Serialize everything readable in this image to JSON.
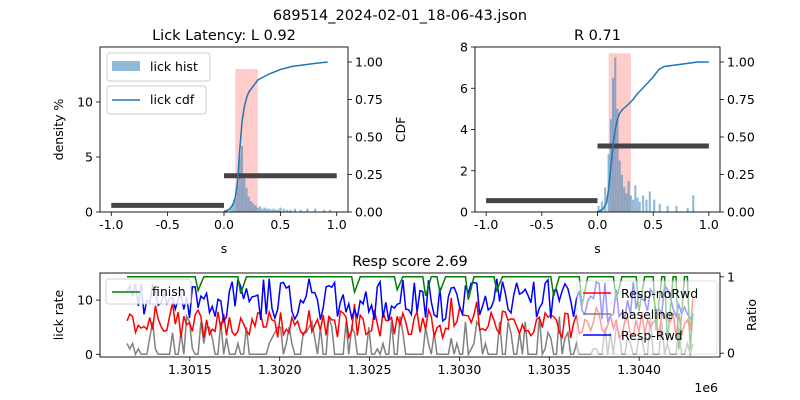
{
  "suptitle": "689514_2024-02-01_18-06-43.json",
  "chart_data": [
    {
      "type": "bar",
      "title": "Lick Latency: L 0.92",
      "xlabel": "s",
      "ylabel": "density %",
      "y2label": "CDF",
      "xlim": [
        -1.1,
        1.1
      ],
      "ylim": [
        0,
        15
      ],
      "y2lim": [
        0,
        1.1
      ],
      "xticks": [
        "-1.0",
        "-0.5",
        "0.0",
        "0.5",
        "1.0"
      ],
      "xtick_values": [
        -1.0,
        -0.5,
        0.0,
        0.5,
        1.0
      ],
      "yticks": [
        "0",
        "5",
        "10"
      ],
      "ytick_values": [
        0,
        5,
        10
      ],
      "y2ticks": [
        "0.00",
        "0.25",
        "0.50",
        "0.75",
        "1.00"
      ],
      "y2tick_values": [
        0,
        0.25,
        0.5,
        0.75,
        1.0
      ],
      "legend": [
        "lick hist",
        "lick cdf"
      ],
      "legend_position": "upper-left",
      "window": [
        0.1,
        0.3
      ],
      "window_height": 13,
      "baseline_bar": {
        "x": [
          -1.0,
          0.0
        ],
        "y": 0.6
      },
      "response_bar": {
        "x": [
          0.0,
          1.0
        ],
        "y": 3.3
      },
      "hist": {
        "x": [
          0.0,
          0.02,
          0.05,
          0.07,
          0.09,
          0.11,
          0.13,
          0.15,
          0.17,
          0.19,
          0.21,
          0.23,
          0.25,
          0.27,
          0.29,
          0.31,
          0.33,
          0.35,
          0.37,
          0.39,
          0.41,
          0.43,
          0.45,
          0.47,
          0.49,
          0.52,
          0.55,
          0.58,
          0.62,
          0.67,
          0.73,
          0.8,
          0.88,
          0.93
        ],
        "values": [
          0.2,
          0.2,
          0.4,
          0.8,
          1.2,
          2.5,
          5.2,
          6.0,
          3.5,
          2.2,
          1.4,
          1.0,
          0.8,
          0.6,
          0.4,
          0.5,
          0.3,
          0.4,
          0.3,
          0.3,
          0.2,
          0.3,
          0.2,
          0.2,
          0.4,
          0.3,
          0.2,
          0.2,
          0.3,
          0.2,
          0.3,
          0.3,
          0.2,
          0.2
        ]
      },
      "cdf": {
        "x": [
          0.0,
          0.05,
          0.08,
          0.1,
          0.12,
          0.14,
          0.16,
          0.18,
          0.2,
          0.22,
          0.26,
          0.3,
          0.35,
          0.4,
          0.5,
          0.6,
          0.7,
          0.8,
          0.92
        ],
        "values": [
          0.0,
          0.02,
          0.05,
          0.1,
          0.2,
          0.42,
          0.6,
          0.7,
          0.76,
          0.8,
          0.84,
          0.88,
          0.9,
          0.92,
          0.95,
          0.97,
          0.98,
          0.99,
          1.0
        ]
      }
    },
    {
      "type": "bar",
      "title": "R 0.71",
      "xlabel": "s",
      "ylabel": "",
      "y2label": "",
      "xlim": [
        -1.1,
        1.1
      ],
      "ylim": [
        0,
        8
      ],
      "y2lim": [
        0,
        1.1
      ],
      "xticks": [
        "-1.0",
        "-0.5",
        "0.0",
        "0.5",
        "1.0"
      ],
      "xtick_values": [
        -1.0,
        -0.5,
        0.0,
        0.5,
        1.0
      ],
      "yticks": [
        "0",
        "2",
        "4",
        "6",
        "8"
      ],
      "ytick_values": [
        0,
        2,
        4,
        6,
        8
      ],
      "y2ticks": [
        "0.00",
        "0.25",
        "0.50",
        "0.75",
        "1.00"
      ],
      "y2tick_values": [
        0,
        0.25,
        0.5,
        0.75,
        1.0
      ],
      "window": [
        0.1,
        0.3
      ],
      "window_height": 7.7,
      "baseline_bar": {
        "x": [
          -1.0,
          0.0
        ],
        "y": 0.55
      },
      "response_bar": {
        "x": [
          0.0,
          1.0
        ],
        "y": 3.2
      },
      "hist": {
        "x": [
          0.0,
          0.03,
          0.06,
          0.09,
          0.11,
          0.13,
          0.15,
          0.17,
          0.19,
          0.21,
          0.23,
          0.25,
          0.27,
          0.29,
          0.31,
          0.33,
          0.35,
          0.37,
          0.4,
          0.43,
          0.46,
          0.5,
          0.55,
          0.62,
          0.7,
          0.8,
          0.85
        ],
        "values": [
          0.3,
          0.5,
          1.2,
          2.8,
          4.5,
          6.5,
          7.5,
          5.0,
          2.5,
          1.8,
          1.2,
          0.9,
          1.5,
          0.8,
          0.6,
          1.3,
          0.7,
          0.5,
          0.8,
          0.6,
          1.0,
          0.6,
          0.4,
          0.3,
          0.3,
          0.2,
          0.8
        ]
      },
      "cdf": {
        "x": [
          0.0,
          0.05,
          0.08,
          0.1,
          0.12,
          0.14,
          0.16,
          0.18,
          0.2,
          0.22,
          0.25,
          0.28,
          0.32,
          0.36,
          0.4,
          0.45,
          0.5,
          0.55,
          0.6,
          0.7,
          0.8,
          0.9,
          1.0
        ],
        "values": [
          0.0,
          0.02,
          0.06,
          0.15,
          0.3,
          0.45,
          0.55,
          0.62,
          0.66,
          0.68,
          0.7,
          0.72,
          0.75,
          0.79,
          0.82,
          0.86,
          0.9,
          0.95,
          0.97,
          0.98,
          0.99,
          1.0,
          1.0
        ]
      }
    },
    {
      "type": "line",
      "title": "Resp score 2.69",
      "xlabel": "",
      "ylabel": "lick rate",
      "y2label": "Ratio",
      "offset_label": "1e6",
      "xlim": [
        1301.0,
        1304.45
      ],
      "ylim": [
        -0.5,
        15
      ],
      "y2lim": [
        -0.05,
        1.05
      ],
      "xticks": [
        "1.3015",
        "1.3020",
        "1.3025",
        "1.3030",
        "1.3035",
        "1.3040"
      ],
      "xtick_values": [
        1301.5,
        1302.0,
        1302.5,
        1303.0,
        1303.5,
        1304.0
      ],
      "yticks": [
        "0",
        "10"
      ],
      "ytick_values": [
        0,
        10
      ],
      "y2ticks": [
        "0",
        "1"
      ],
      "y2tick_values": [
        0,
        1
      ],
      "x_range": [
        1301.15,
        1304.3
      ],
      "legend_left": [
        "finish"
      ],
      "legend_right": [
        "Resp-noRwd",
        "baseline",
        "Resp-Rwd"
      ],
      "n_points": 200
    }
  ],
  "colors": {
    "hist": "#1f77b4",
    "cdf": "#1f77b4",
    "window": "#ff9a9a",
    "bars": "#444444",
    "finish": "#008000",
    "noRwd": "#ff0000",
    "baseline": "#808080",
    "rwd": "#0000ff"
  }
}
